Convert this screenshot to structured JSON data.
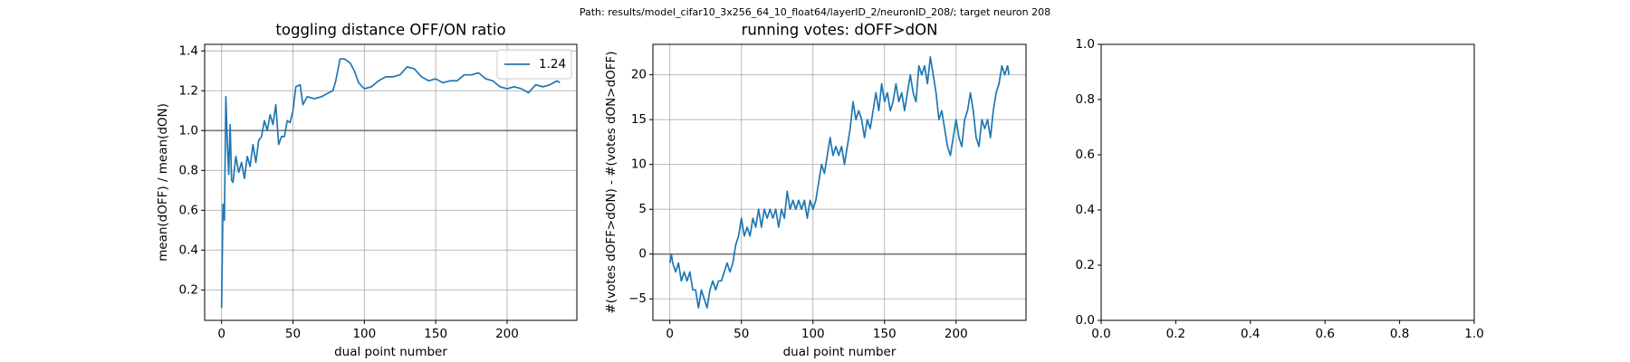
{
  "title": "Path: results/model_cifar10_3x256_64_10_float64/layerID_2/neuronID_208/; target neuron 208",
  "chart_data": [
    {
      "type": "line",
      "title": "toggling distance OFF/ON ratio",
      "xlabel": "dual point number",
      "ylabel": "mean(dOFF) / mean(dON)",
      "x": [
        0,
        1,
        2,
        3,
        4,
        5,
        6,
        7,
        8,
        10,
        12,
        14,
        16,
        18,
        20,
        22,
        24,
        26,
        28,
        30,
        32,
        34,
        36,
        38,
        40,
        42,
        44,
        46,
        48,
        50,
        52,
        55,
        57,
        60,
        65,
        70,
        75,
        78,
        80,
        83,
        86,
        90,
        93,
        96,
        100,
        105,
        110,
        115,
        120,
        125,
        130,
        135,
        140,
        145,
        150,
        155,
        160,
        165,
        170,
        175,
        180,
        185,
        190,
        195,
        200,
        205,
        210,
        215,
        220,
        225,
        230,
        235,
        237
      ],
      "series": [
        {
          "name": "1.24",
          "color": "#1f77b4",
          "values": [
            0.11,
            0.63,
            0.55,
            1.17,
            0.95,
            0.78,
            1.03,
            0.75,
            0.74,
            0.87,
            0.79,
            0.84,
            0.76,
            0.87,
            0.82,
            0.93,
            0.84,
            0.95,
            0.97,
            1.05,
            1.0,
            1.08,
            1.03,
            1.13,
            0.93,
            0.97,
            0.97,
            1.05,
            1.04,
            1.1,
            1.22,
            1.23,
            1.13,
            1.17,
            1.16,
            1.17,
            1.19,
            1.2,
            1.25,
            1.36,
            1.36,
            1.34,
            1.3,
            1.24,
            1.21,
            1.22,
            1.25,
            1.27,
            1.27,
            1.28,
            1.32,
            1.31,
            1.27,
            1.25,
            1.26,
            1.24,
            1.25,
            1.25,
            1.28,
            1.28,
            1.29,
            1.26,
            1.25,
            1.22,
            1.21,
            1.22,
            1.21,
            1.19,
            1.23,
            1.22,
            1.23,
            1.25,
            1.24
          ]
        }
      ],
      "hlines": [
        1
      ],
      "hline_color": "#808080",
      "legend": "upper right",
      "xlim": [
        -11.85,
        248.85
      ],
      "ylim": [
        0.047,
        1.433
      ],
      "xticks": [
        0,
        50,
        100,
        150,
        200
      ],
      "yticks": [
        0.2,
        0.4,
        0.6,
        0.8,
        {
          "value": 1,
          "label": "1.0"
        },
        1.2,
        1.4
      ],
      "grid": true
    },
    {
      "type": "line",
      "title": "running votes: dOFF>dON",
      "xlabel": "dual point number",
      "ylabel": "#(votes dOFF>dON) - #(votes dON>dOFF)",
      "x": [
        0,
        1,
        2,
        4,
        6,
        8,
        10,
        12,
        14,
        16,
        18,
        20,
        22,
        24,
        26,
        28,
        30,
        32,
        34,
        36,
        38,
        40,
        42,
        44,
        46,
        48,
        50,
        52,
        54,
        56,
        58,
        60,
        62,
        64,
        66,
        68,
        70,
        72,
        74,
        76,
        78,
        80,
        82,
        84,
        86,
        88,
        90,
        92,
        94,
        96,
        98,
        100,
        102,
        104,
        106,
        108,
        110,
        112,
        114,
        116,
        118,
        120,
        122,
        124,
        126,
        128,
        130,
        132,
        134,
        136,
        138,
        140,
        142,
        144,
        146,
        148,
        150,
        152,
        154,
        156,
        158,
        160,
        162,
        164,
        166,
        168,
        170,
        172,
        174,
        176,
        178,
        180,
        182,
        184,
        186,
        188,
        190,
        192,
        194,
        196,
        198,
        200,
        202,
        204,
        206,
        208,
        210,
        212,
        214,
        216,
        218,
        220,
        222,
        224,
        226,
        228,
        230,
        232,
        234,
        236,
        237
      ],
      "series": [
        {
          "color": "#1f77b4",
          "values": [
            -1,
            0,
            -1,
            -2,
            -1,
            -3,
            -2,
            -3,
            -2,
            -4,
            -4,
            -6,
            -4,
            -5,
            -6,
            -4,
            -3,
            -4,
            -3,
            -3,
            -2,
            -1,
            -2,
            -1,
            1,
            2,
            4,
            2,
            3,
            2,
            4,
            3,
            5,
            3,
            5,
            4,
            5,
            4,
            5,
            3,
            5,
            4,
            7,
            5,
            6,
            5,
            6,
            5,
            6,
            4,
            6,
            5,
            6,
            8,
            10,
            9,
            11,
            13,
            11,
            12,
            11,
            12,
            10,
            12,
            14,
            17,
            15,
            16,
            15,
            13,
            15,
            14,
            16,
            18,
            16,
            19,
            17,
            18,
            16,
            17,
            19,
            17,
            18,
            16,
            18,
            20,
            18,
            17,
            21,
            20,
            21,
            19,
            22,
            20,
            18,
            15,
            16,
            14,
            12,
            11,
            13,
            15,
            13,
            12,
            15,
            16,
            18,
            16,
            13,
            12,
            15,
            14,
            15,
            13,
            16,
            18,
            19,
            21,
            20,
            21,
            20
          ]
        }
      ],
      "hlines": [
        0
      ],
      "hline_color": "#808080",
      "xlim": [
        -11.85,
        248.85
      ],
      "ylim": [
        -7.4,
        23.4
      ],
      "xticks": [
        0,
        50,
        100,
        150,
        200
      ],
      "yticks": [
        {
          "value": -5,
          "label": "−5"
        },
        0,
        5,
        10,
        15,
        20
      ],
      "grid": true
    },
    {
      "type": "line",
      "series": [],
      "xlim": [
        0,
        1
      ],
      "ylim": [
        0,
        1
      ],
      "xticks": [
        {
          "value": 0,
          "label": "0.0"
        },
        0.2,
        0.4,
        0.6,
        0.8,
        {
          "value": 1,
          "label": "1.0"
        }
      ],
      "yticks": [
        {
          "value": 0,
          "label": "0.0"
        },
        0.2,
        0.4,
        0.6,
        0.8,
        {
          "value": 1,
          "label": "1.0"
        }
      ],
      "grid": false
    }
  ]
}
